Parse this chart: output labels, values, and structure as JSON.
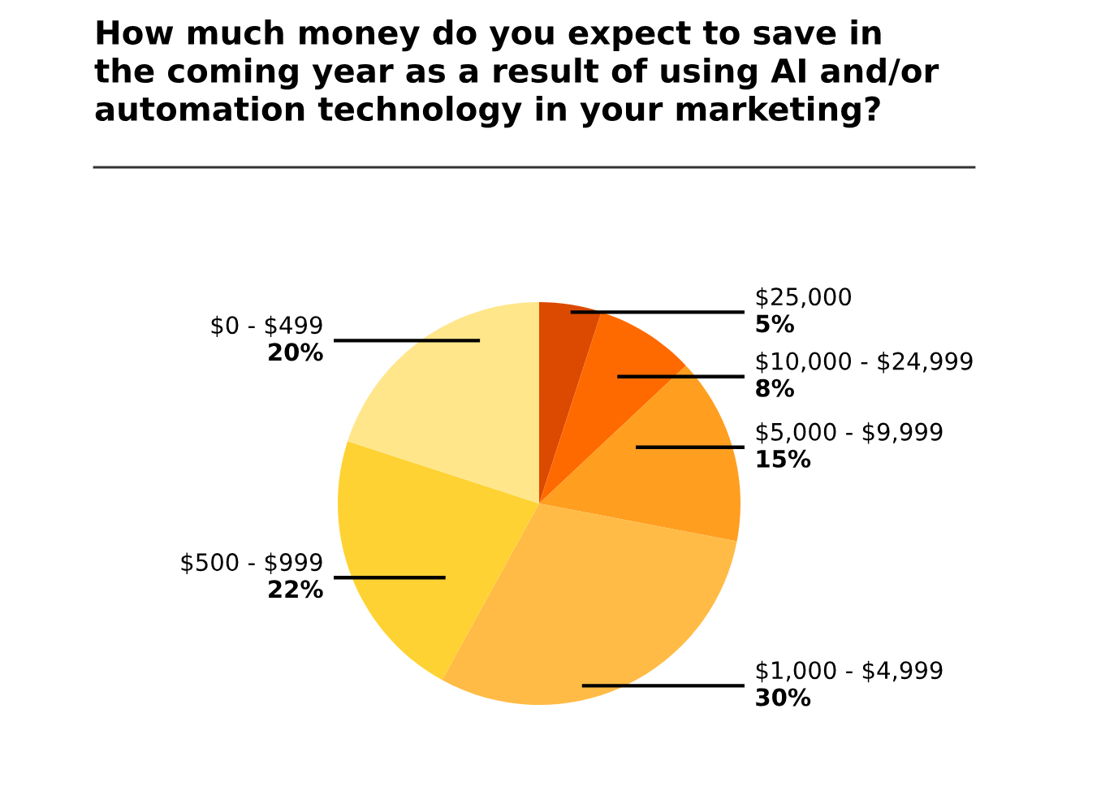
{
  "chart_data": {
    "type": "pie",
    "title": "How much money do you expect to save in\nthe coming year as a result of using AI and/or\nautomation technology in your marketing?",
    "categories": [
      "$25,000",
      "$10,000 - $24,999",
      "$5,000 - $9,999",
      "$1,000 - $4,999",
      "$500 - $999",
      "$0 - $499"
    ],
    "values": [
      5,
      8,
      15,
      30,
      22,
      20
    ],
    "value_labels": [
      "5%",
      "8%",
      "15%",
      "30%",
      "22%",
      "20%"
    ],
    "colors": [
      "#db4a00",
      "#ff6a00",
      "#ff9e1f",
      "#ffbb45",
      "#ffd233",
      "#ffe68a"
    ],
    "legend": false
  }
}
